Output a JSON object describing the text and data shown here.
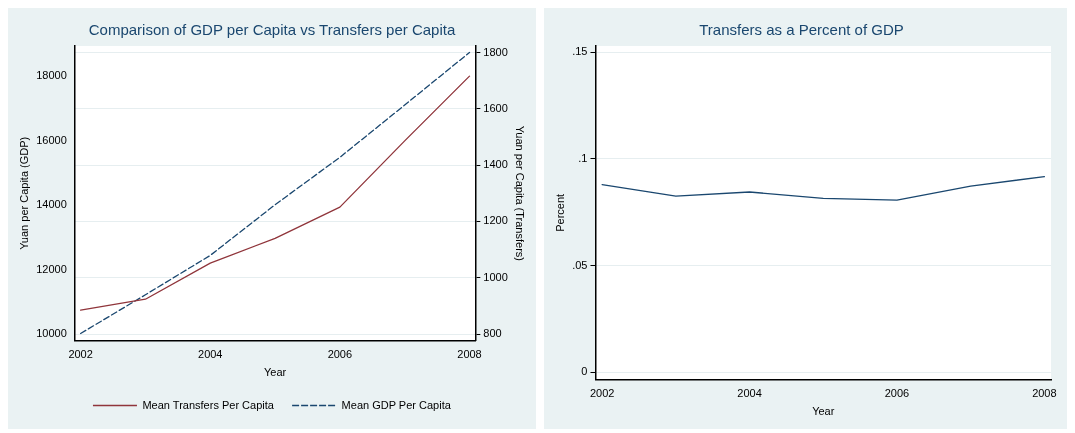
{
  "chart_data": [
    {
      "type": "line",
      "title": "Comparison of GDP per Capita vs Transfers per Capita",
      "xlabel": "Year",
      "ylabel": "Yuan per Capita (GDP)",
      "y2label": "Yuan per Capita (Transfers)",
      "x": [
        2002,
        2003,
        2004,
        2005,
        2006,
        2007,
        2008
      ],
      "series": [
        {
          "name": "Mean Transfers Per Capita",
          "color": "#90353b",
          "axis": "y2",
          "line_style": "solid",
          "values": [
            885,
            924,
            1052,
            1140,
            1251,
            1486,
            1716
          ]
        },
        {
          "name": "Mean GDP Per Capita",
          "color": "#1a476f",
          "line_style": "dashed",
          "values": [
            10020,
            11220,
            12440,
            14010,
            15480,
            17100,
            18730
          ]
        }
      ],
      "xlim": [
        2001.91,
        2008.09
      ],
      "xticks": [
        2002,
        2004,
        2006,
        2008
      ],
      "ylim": [
        9800,
        18930
      ],
      "yticks": [
        10000,
        12000,
        14000,
        16000,
        18000
      ],
      "y2lim": [
        777,
        1823
      ],
      "y2ticks": [
        800,
        1000,
        1200,
        1400,
        1600,
        1800
      ],
      "grid": "y2",
      "legend": "bottom",
      "marker": "none"
    },
    {
      "type": "line",
      "title": "Transfers as a Percent of GDP",
      "xlabel": "Year",
      "ylabel": "Percent",
      "x": [
        2002,
        2003,
        2004,
        2005,
        2006,
        2007,
        2008
      ],
      "series": [
        {
          "color": "#1a476f",
          "line_style": "solid",
          "values": [
            0.088,
            0.0826,
            0.0845,
            0.0815,
            0.0807,
            0.0873,
            0.0917
          ]
        }
      ],
      "xlim": [
        2001.91,
        2008.09
      ],
      "xticks": [
        2002,
        2004,
        2006,
        2008
      ],
      "ylim": [
        -0.0035,
        0.153
      ],
      "yticks": [
        0,
        {
          "value": 0.05,
          "label": ".05"
        },
        {
          "value": 0.1,
          "label": ".1"
        },
        {
          "value": 0.15,
          "label": ".15"
        }
      ],
      "grid": "y",
      "legend": false,
      "marker": "none"
    }
  ]
}
